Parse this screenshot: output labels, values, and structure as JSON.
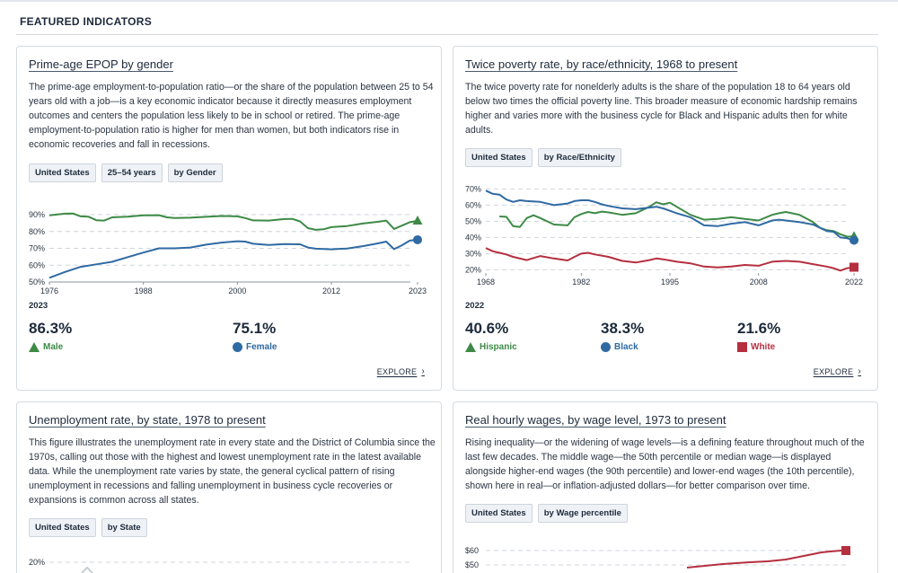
{
  "section_title": "FEATURED INDICATORS",
  "colors": {
    "green": "#3d8a46",
    "blue": "#2f6aa3",
    "red": "#b52f3f",
    "grid": "#cfd5dc"
  },
  "cards": [
    {
      "title": "Prime-age EPOP by gender",
      "description": "The prime-age employment-to-population ratio—or the share of the population between 25 to 54 years old with a job—is a key economic indicator because it directly measures employment outcomes and centers the population less likely to be in school or retired. The prime-age employment-to-population ratio is higher for men than women, but both indicators rise in economic recoveries and fall in recessions.",
      "tags": [
        "United States",
        "25–54 years",
        "by Gender"
      ],
      "year": "2023",
      "stats": [
        {
          "value": "86.3%",
          "label": "Male",
          "icon": "triangle-icon",
          "color": "#3d8a46"
        },
        {
          "value": "75.1%",
          "label": "Female",
          "icon": "circle-icon",
          "color": "#2f6aa3"
        }
      ],
      "explore": "EXPLORE"
    },
    {
      "title": "Twice poverty rate, by race/ethnicity, 1968 to present",
      "description": "The twice poverty rate for nonelderly adults is the share of the population 18 to 64 years old below two times the official poverty line. This broader measure of economic hardship remains higher and varies more with the business cycle for Black and Hispanic adults then for white adults.",
      "tags": [
        "United States",
        "by Race/Ethnicity"
      ],
      "year": "2022",
      "stats": [
        {
          "value": "40.6%",
          "label": "Hispanic",
          "icon": "triangle-icon",
          "color": "#3d8a46"
        },
        {
          "value": "38.3%",
          "label": "Black",
          "icon": "circle-icon",
          "color": "#2f6aa3"
        },
        {
          "value": "21.6%",
          "label": "White",
          "icon": "square-icon",
          "color": "#b52f3f"
        }
      ],
      "explore": "EXPLORE"
    },
    {
      "title": "Unemployment rate, by state, 1978 to present",
      "description": "This figure illustrates the unemployment rate in every state and the District of Columbia since the 1970s, calling out those with the highest and lowest unemployment rate in the latest available data. While the unemployment rate varies by state, the general cyclical pattern of rising unemployment in recessions and falling unemployment in business cycle recoveries or expansions is common across all states.",
      "tags": [
        "United States",
        "by State"
      ]
    },
    {
      "title": "Real hourly wages, by wage level, 1973 to present",
      "description": "Rising inequality—or the widening of wage levels—is a defining feature throughout much of the last few decades. The middle wage—the 50th percentile or median wage—is displayed alongside higher-end wages (the 90th percentile) and lower-end wages (the 10th percentile), shown here in real—or inflation-adjusted dollars—for better comparison over time.",
      "tags": [
        "United States",
        "by Wage percentile"
      ]
    }
  ],
  "chart_data": [
    {
      "type": "line",
      "x_ticks": [
        1976,
        1988,
        2000,
        2012,
        2023
      ],
      "y_ticks": [
        "50%",
        "60%",
        "70%",
        "80%",
        "90%"
      ],
      "xlim": [
        1976,
        2023
      ],
      "ylim": [
        50,
        92
      ],
      "series": [
        {
          "name": "Male",
          "color": "#3d8a46",
          "marker": "triangle",
          "x": [
            1976,
            1978,
            1979,
            1980,
            1981,
            1982,
            1983,
            1984,
            1986,
            1988,
            1990,
            1991,
            1992,
            1994,
            1996,
            1998,
            2000,
            2001,
            2002,
            2004,
            2006,
            2007,
            2008,
            2009,
            2010,
            2011,
            2012,
            2014,
            2016,
            2018,
            2019,
            2020,
            2021,
            2022,
            2023
          ],
          "y": [
            89.6,
            90.6,
            90.7,
            89.0,
            88.8,
            86.7,
            86.5,
            88.4,
            88.8,
            89.6,
            89.7,
            88.4,
            88.0,
            88.2,
            88.7,
            89.2,
            89.0,
            88.0,
            86.6,
            86.5,
            87.4,
            87.5,
            86.0,
            82.0,
            81.0,
            81.3,
            82.6,
            83.2,
            84.7,
            85.8,
            86.5,
            81.5,
            83.5,
            85.5,
            86.3
          ]
        },
        {
          "name": "Female",
          "color": "#2f6aa3",
          "marker": "circle",
          "x": [
            1976,
            1978,
            1980,
            1982,
            1984,
            1986,
            1988,
            1990,
            1992,
            1994,
            1996,
            1998,
            2000,
            2001,
            2002,
            2004,
            2006,
            2008,
            2009,
            2010,
            2012,
            2014,
            2016,
            2018,
            2019,
            2020,
            2021,
            2022,
            2023
          ],
          "y": [
            52.5,
            56.0,
            59.0,
            60.5,
            62.0,
            64.8,
            67.5,
            70.0,
            70.0,
            70.5,
            72.2,
            73.4,
            74.2,
            74.0,
            72.7,
            72.0,
            72.5,
            72.4,
            70.5,
            69.8,
            69.4,
            69.9,
            71.3,
            73.0,
            74.0,
            69.5,
            71.8,
            74.6,
            75.1
          ]
        }
      ]
    },
    {
      "type": "line",
      "x_ticks": [
        1968,
        1982,
        1995,
        2008,
        2022
      ],
      "y_ticks": [
        "20%",
        "30%",
        "40%",
        "50%",
        "60%",
        "70%"
      ],
      "xlim": [
        1968,
        2022
      ],
      "ylim": [
        18,
        71
      ],
      "series": [
        {
          "name": "Hispanic",
          "color": "#3d8a46",
          "marker": "triangle",
          "x": [
            1970,
            1971,
            1972,
            1973,
            1974,
            1975,
            1976,
            1978,
            1980,
            1981,
            1982,
            1983,
            1984,
            1985,
            1986,
            1987,
            1988,
            1990,
            1992,
            1993,
            1994,
            1995,
            1996,
            1997,
            1998,
            2000,
            2002,
            2004,
            2006,
            2008,
            2010,
            2011,
            2012,
            2014,
            2016,
            2017,
            2018,
            2019,
            2020,
            2021,
            2022
          ],
          "y": [
            53.0,
            52.8,
            47.0,
            46.5,
            52.0,
            53.7,
            52.0,
            48.0,
            47.5,
            52.5,
            54.5,
            55.8,
            55.0,
            56.0,
            55.5,
            54.8,
            54.0,
            55.0,
            59.0,
            61.8,
            60.5,
            61.5,
            59.0,
            56.5,
            54.0,
            51.0,
            51.5,
            52.5,
            51.5,
            50.5,
            54.0,
            55.0,
            55.8,
            54.0,
            49.5,
            46.0,
            44.5,
            44.0,
            42.0,
            40.5,
            40.6
          ]
        },
        {
          "name": "Black",
          "color": "#2f6aa3",
          "marker": "circle",
          "x": [
            1968,
            1969,
            1970,
            1971,
            1972,
            1973,
            1974,
            1976,
            1978,
            1980,
            1981,
            1982,
            1983,
            1984,
            1985,
            1986,
            1988,
            1990,
            1992,
            1993,
            1994,
            1995,
            1996,
            1998,
            2000,
            2002,
            2004,
            2006,
            2008,
            2010,
            2011,
            2012,
            2014,
            2016,
            2018,
            2019,
            2020,
            2021,
            2022
          ],
          "y": [
            69.0,
            67.0,
            66.5,
            63.5,
            62.0,
            63.0,
            62.5,
            62.0,
            60.0,
            61.0,
            62.5,
            63.0,
            63.0,
            62.0,
            60.5,
            59.5,
            58.0,
            57.5,
            58.5,
            59.0,
            58.0,
            56.5,
            55.0,
            52.5,
            47.5,
            47.0,
            48.5,
            49.5,
            47.5,
            50.5,
            51.0,
            50.5,
            49.5,
            48.0,
            44.0,
            43.5,
            40.0,
            39.5,
            38.3
          ]
        },
        {
          "name": "White",
          "color": "#b52f3f",
          "marker": "square",
          "x": [
            1968,
            1969,
            1970,
            1971,
            1972,
            1974,
            1976,
            1978,
            1980,
            1981,
            1982,
            1983,
            1984,
            1986,
            1988,
            1990,
            1992,
            1993,
            1994,
            1996,
            1998,
            2000,
            2002,
            2004,
            2006,
            2008,
            2010,
            2012,
            2014,
            2016,
            2018,
            2019,
            2020,
            2021,
            2022
          ],
          "y": [
            33.5,
            31.5,
            30.5,
            29.5,
            28.0,
            26.0,
            28.5,
            27.0,
            25.8,
            28.0,
            30.0,
            30.5,
            29.5,
            28.0,
            25.5,
            24.5,
            26.0,
            27.0,
            26.5,
            25.0,
            24.0,
            22.0,
            21.5,
            22.0,
            23.0,
            22.5,
            25.0,
            25.5,
            25.0,
            23.5,
            22.0,
            21.0,
            19.5,
            21.0,
            21.6
          ]
        }
      ]
    },
    {
      "type": "line",
      "y_ticks": [
        "20%"
      ]
    },
    {
      "type": "line",
      "y_ticks": [
        "$60",
        "$50"
      ]
    }
  ]
}
